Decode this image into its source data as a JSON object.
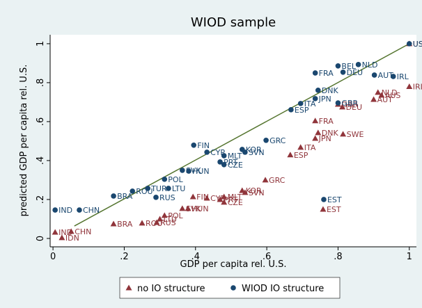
{
  "chart_data": {
    "type": "scatter",
    "title": "WIOD sample",
    "x_label": "GDP per capita rel. U.S.",
    "y_label": "predicted GDP per capita rel. U.S.",
    "xlim": [
      -0.008,
      1.02
    ],
    "ylim": [
      -0.043,
      1.046
    ],
    "xticks": [
      0,
      {
        "value": 0.2,
        "label": ".2"
      },
      {
        "value": 0.4,
        "label": ".4"
      },
      {
        "value": 0.6,
        "label": ".6"
      },
      {
        "value": 0.8,
        "label": ".8"
      },
      1
    ],
    "yticks": [
      0,
      {
        "value": 0.2,
        "label": ".2"
      },
      {
        "value": 0.4,
        "label": ".4"
      },
      {
        "value": 0.6,
        "label": ".6"
      },
      {
        "value": 0.8,
        "label": ".8"
      },
      1
    ],
    "grid": false,
    "fit_line": {
      "color": "#55752f",
      "x": [
        0.06,
        1
      ],
      "values": [
        0.064,
        1
      ]
    },
    "series": [
      {
        "name": "no IO structure",
        "color": "#90353b",
        "marker": "triangle",
        "labels": [
          "USA",
          "IRL",
          "NLD",
          "AUS",
          "AUT",
          "GBR",
          "DEU",
          "FRA",
          "DNK",
          "SWE",
          "JPN",
          "ITA",
          "ESP",
          "GRC",
          "EST",
          "FIN",
          "CYP",
          "KOR",
          "SVN",
          "MLT",
          "PRT",
          "CZE",
          "SVK",
          "HUN",
          "POL",
          "LTU",
          "RUS",
          "ROU",
          "BRA",
          "CHN",
          "IND",
          "IDN"
        ],
        "x": [
          1,
          1,
          0.912,
          0.922,
          0.9,
          0.8,
          0.812,
          0.736,
          0.744,
          0.814,
          0.736,
          0.695,
          0.666,
          0.596,
          0.758,
          0.393,
          0.432,
          0.531,
          0.539,
          0.48,
          0.469,
          0.48,
          0.363,
          0.379,
          0.313,
          0.3,
          0.291,
          0.25,
          0.17,
          0.051,
          0.006,
          0.025
        ],
        "values": [
          1,
          0.78,
          0.75,
          0.736,
          0.714,
          0.689,
          0.675,
          0.604,
          0.543,
          0.536,
          0.514,
          0.468,
          0.429,
          0.3,
          0.15,
          0.214,
          0.207,
          0.246,
          0.236,
          0.214,
          0.2,
          0.186,
          0.154,
          0.154,
          0.118,
          0.1,
          0.082,
          0.079,
          0.075,
          0.036,
          0.032,
          0.004
        ]
      },
      {
        "name": "WIOD IO structure",
        "color": "#1a476f",
        "marker": "circle",
        "labels": [
          "USA",
          "BEL",
          "NLD",
          "FRA",
          "DEU",
          "AUT",
          "IRL",
          "DNK",
          "JPN",
          "GBR",
          "ITA",
          "ESP",
          "GRC",
          "FIN",
          "CYP",
          "KOR",
          "MLT",
          "SVN",
          "PRT",
          "CZE",
          "SVK",
          "HUN",
          "POL",
          "LTU",
          "TUR",
          "ROU",
          "BRA",
          "RUS",
          "EST",
          "IND",
          "CHN"
        ],
        "x": [
          1,
          0.8,
          0.857,
          0.736,
          0.814,
          0.902,
          0.955,
          0.744,
          0.736,
          0.8,
          0.695,
          0.668,
          0.598,
          0.395,
          0.432,
          0.531,
          0.48,
          0.539,
          0.469,
          0.48,
          0.363,
          0.381,
          0.313,
          0.324,
          0.266,
          0.223,
          0.17,
          0.289,
          0.76,
          0.006,
          0.074
        ],
        "values": [
          1,
          0.886,
          0.893,
          0.85,
          0.854,
          0.839,
          0.832,
          0.761,
          0.718,
          0.696,
          0.693,
          0.661,
          0.504,
          0.479,
          0.443,
          0.457,
          0.425,
          0.443,
          0.393,
          0.379,
          0.35,
          0.346,
          0.304,
          0.257,
          0.257,
          0.243,
          0.218,
          0.211,
          0.2,
          0.146,
          0.146
        ]
      }
    ]
  }
}
